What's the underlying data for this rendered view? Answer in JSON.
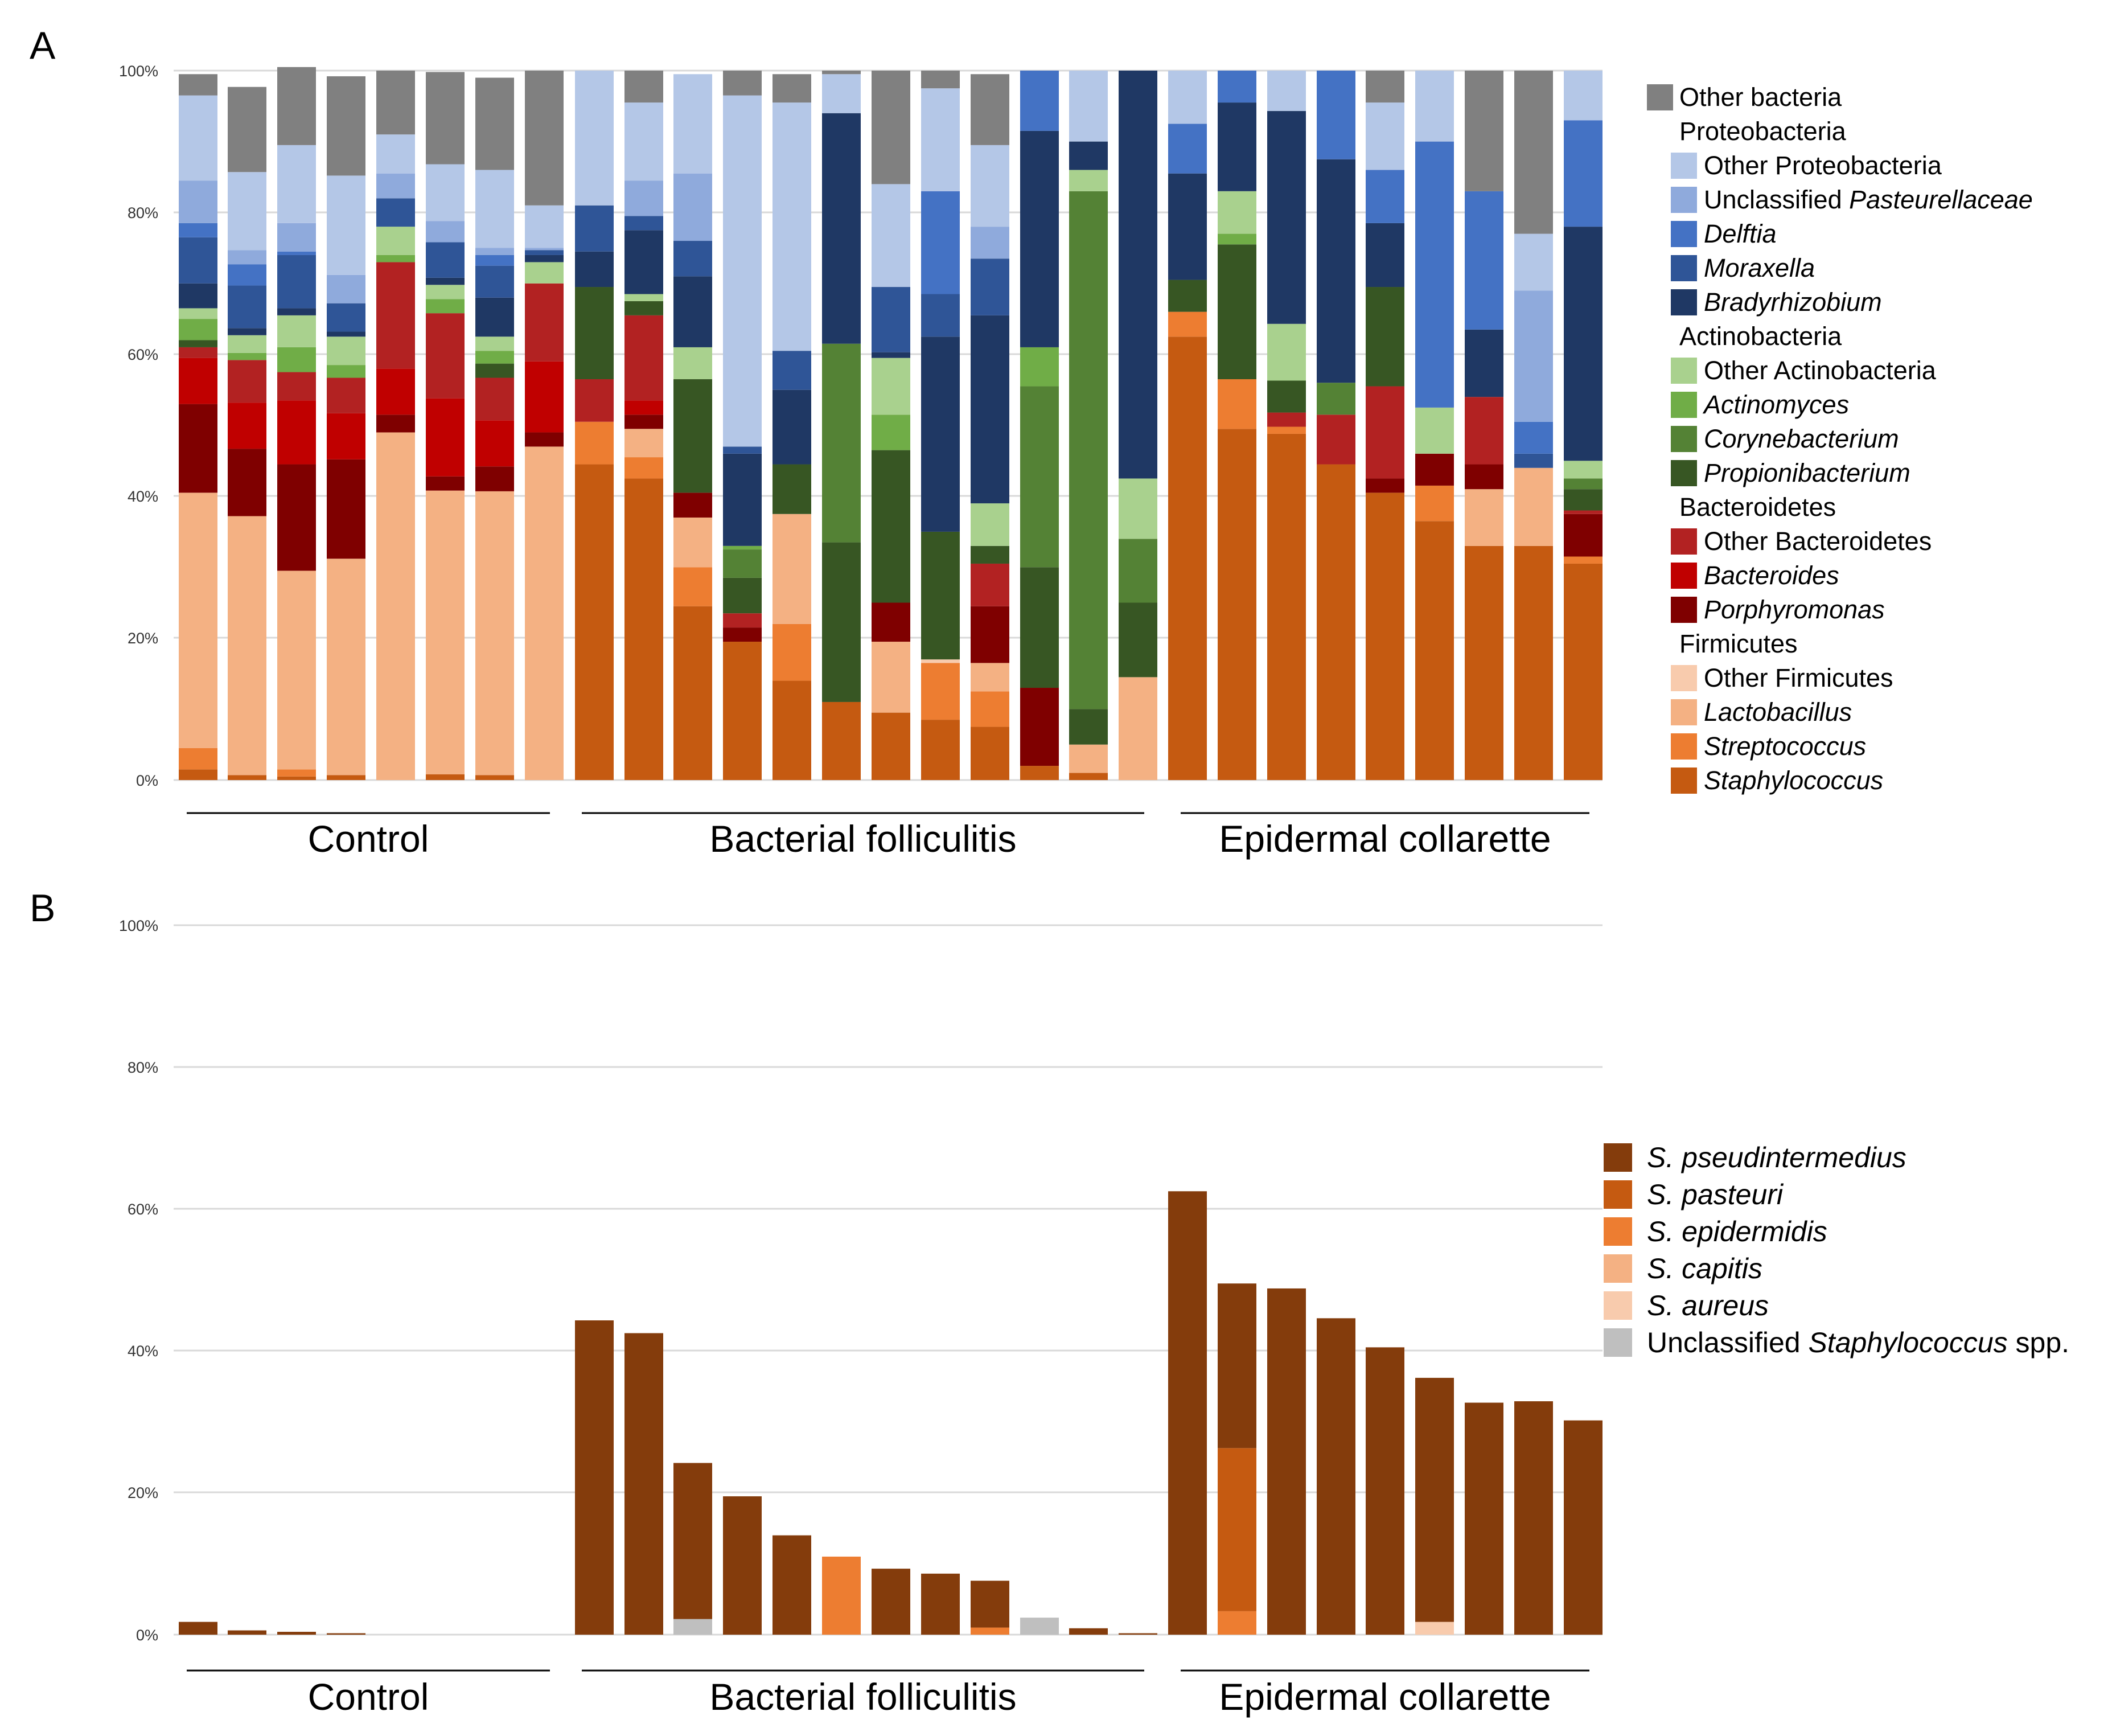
{
  "panel_a": {
    "letter": "A",
    "chart_data": {
      "type": "bar",
      "stacked": true,
      "title": "",
      "ylabel": "",
      "ylim": [
        0,
        100
      ],
      "y_ticks": [
        "0%",
        "20%",
        "40%",
        "60%",
        "80%",
        "100%"
      ],
      "groups": [
        {
          "label": "Control",
          "count": 8
        },
        {
          "label": "Bacterial folliculitis",
          "count": 12
        },
        {
          "label": "Epidermal collarette",
          "count": 9
        }
      ],
      "segments": [
        "Staphylococcus",
        "Streptococcus",
        "Lactobacillus",
        "Other Firmicutes",
        "Porphyromonas",
        "Bacteroides",
        "Other Bacteroidetes",
        "Propionibacterium",
        "Corynebacterium",
        "Actinomyces",
        "Other Actinobacteria",
        "Bradyrhizobium",
        "Moraxella",
        "Delftia",
        "Unclassified Pasteurellaceae",
        "Other Proteobacteria",
        "Other bacteria"
      ],
      "bars": [
        [
          1.5,
          3,
          36,
          0,
          12.5,
          6.5,
          1.5,
          1,
          0,
          3,
          1.5,
          3.5,
          6.5,
          2,
          6,
          12,
          3
        ],
        [
          0.7,
          0,
          36.5,
          0,
          9.5,
          6.5,
          6,
          0,
          0,
          1,
          2.5,
          1,
          6,
          3,
          2,
          11,
          12
        ],
        [
          0.5,
          1,
          28,
          0,
          15,
          9,
          4,
          0,
          0,
          3.5,
          4.5,
          1,
          7.5,
          0.5,
          4,
          11,
          11
        ],
        [
          0.7,
          0,
          30.5,
          0,
          14,
          6.5,
          5,
          0,
          0,
          1.8,
          4,
          0.7,
          4,
          0,
          4,
          14,
          14
        ],
        [
          0,
          0,
          49,
          0,
          2.5,
          6.5,
          15,
          0,
          0,
          1,
          4,
          0,
          4,
          0,
          3.5,
          5.5,
          9
        ],
        [
          0.8,
          0,
          40,
          0,
          2,
          11,
          12,
          0,
          0,
          2,
          2,
          1,
          5,
          0,
          3,
          8,
          13
        ],
        [
          0.7,
          0,
          40,
          0,
          3.5,
          6.5,
          6,
          2,
          0,
          1.8,
          2,
          5.5,
          4.5,
          1.5,
          1,
          11,
          13
        ],
        [
          0,
          0,
          47,
          0,
          2,
          10,
          11,
          0,
          0,
          0,
          3,
          1,
          0.7,
          0,
          0.3,
          6,
          19
        ],
        [
          44.5,
          6,
          0,
          0,
          0,
          0,
          6,
          13,
          0,
          0,
          0,
          5,
          6.5,
          0,
          0,
          19,
          0
        ],
        [
          42.5,
          3,
          4,
          0,
          2,
          2,
          12,
          2,
          0,
          0,
          1,
          9,
          2,
          0,
          5,
          11,
          4.5
        ],
        [
          24.5,
          5.5,
          7,
          0,
          3.5,
          0,
          0,
          16,
          0,
          0,
          4.5,
          10,
          5,
          0,
          9.5,
          14,
          0
        ],
        [
          19.5,
          0,
          0,
          0,
          2,
          0,
          2,
          5,
          4,
          0.5,
          0,
          13,
          1,
          0,
          0,
          49.5,
          3.5
        ],
        [
          14,
          8,
          15.5,
          0,
          0,
          0,
          0,
          7,
          0,
          0,
          0,
          10.5,
          5.5,
          0,
          0,
          35,
          4
        ],
        [
          11,
          0,
          0,
          0,
          0,
          0,
          0,
          22.5,
          28,
          0,
          0,
          32.5,
          0,
          0,
          0,
          5.5,
          0.5
        ],
        [
          9.5,
          0,
          10,
          0,
          5.5,
          0,
          0,
          21.5,
          0,
          5,
          8,
          0.8,
          9.2,
          0,
          0,
          14.5,
          16
        ],
        [
          8.5,
          8,
          0,
          0.5,
          0,
          0,
          0,
          18,
          0,
          0,
          0,
          27.5,
          6,
          14.5,
          0,
          14.5,
          2.5
        ],
        [
          7.5,
          5,
          4,
          0,
          8,
          0,
          6,
          2.5,
          0,
          0,
          6,
          26.5,
          8,
          0,
          4.5,
          11.5,
          10
        ],
        [
          2,
          0,
          0,
          0,
          11,
          0,
          0,
          17,
          25.5,
          5.5,
          0,
          30.5,
          0,
          8.5,
          0,
          0,
          0
        ],
        [
          1,
          0,
          4,
          0,
          0,
          0,
          0,
          5,
          73,
          0,
          3,
          4,
          0,
          0,
          0,
          10,
          0
        ],
        [
          0,
          0,
          14.5,
          0,
          0,
          0,
          0,
          10.5,
          9,
          0,
          8.5,
          57.5,
          0,
          0,
          0,
          0,
          0
        ],
        [
          62.5,
          3.5,
          0,
          0,
          0,
          0,
          0,
          4.5,
          0,
          0,
          0,
          15,
          0,
          7,
          0,
          7.5,
          0
        ],
        [
          49.5,
          7,
          0,
          0,
          0,
          0,
          0,
          19,
          0,
          1.5,
          6,
          12.5,
          0,
          4.5,
          0,
          0,
          0
        ],
        [
          48.8,
          1,
          0,
          0,
          0,
          0,
          2,
          4.5,
          0,
          0,
          8,
          30,
          0,
          0,
          0,
          5.7,
          0
        ],
        [
          44.5,
          0,
          0,
          0,
          0,
          0,
          7,
          0,
          4.5,
          0,
          0,
          31.5,
          0,
          12.5,
          0,
          0,
          0
        ],
        [
          40.5,
          0,
          0,
          0,
          2,
          0,
          13,
          14,
          0,
          0,
          0,
          9,
          0,
          7.5,
          0,
          9.5,
          4.5
        ],
        [
          36.5,
          5,
          0,
          0,
          4.5,
          0,
          0,
          0,
          0,
          0,
          6.5,
          0,
          0,
          37.5,
          0,
          10,
          0
        ],
        [
          33,
          0,
          8,
          0,
          3.5,
          0,
          9.5,
          0,
          0,
          0,
          0,
          9.5,
          0,
          19.5,
          0,
          0,
          17
        ],
        [
          33,
          0,
          11,
          0,
          0,
          0,
          0,
          0,
          0,
          0,
          0,
          0,
          2,
          4.5,
          18.5,
          8,
          23
        ],
        [
          30.5,
          1,
          0,
          0,
          6,
          0,
          0.5,
          3,
          1.5,
          0,
          2.5,
          33,
          0,
          15,
          0,
          7,
          0
        ]
      ]
    },
    "legend": {
      "other_bacteria": "Other bacteria",
      "proteobacteria": "Proteobacteria",
      "other_proteobacteria": "Other Proteobacteria",
      "unclassified_prefix": "Unclassified ",
      "pasteurellaceae": "Pasteurellaceae",
      "delftia": "Delftia",
      "moraxella": "Moraxella",
      "bradyrhizobium": "Bradyrhizobium",
      "actinobacteria": "Actinobacteria",
      "other_actinobacteria": "Other Actinobacteria",
      "actinomyces": "Actinomyces",
      "corynebacterium": "Corynebacterium",
      "propionibacterium": "Propionibacterium",
      "bacteroidetes": "Bacteroidetes",
      "other_bacteroidetes": "Other Bacteroidetes",
      "bacteroides": "Bacteroides",
      "porphyromonas": "Porphyromonas",
      "firmicutes": "Firmicutes",
      "other_firmicutes": "Other Firmicutes",
      "lactobacillus": "Lactobacillus",
      "streptococcus": "Streptococcus",
      "staphylococcus": "Staphylococcus"
    }
  },
  "panel_b": {
    "letter": "B",
    "chart_data": {
      "type": "bar",
      "stacked": true,
      "title": "",
      "ylabel": "",
      "ylim": [
        0,
        100
      ],
      "y_ticks": [
        "0%",
        "20%",
        "40%",
        "60%",
        "80%",
        "100%"
      ],
      "groups": [
        {
          "label": "Control",
          "count": 8
        },
        {
          "label": "Bacterial folliculitis",
          "count": 12
        },
        {
          "label": "Epidermal collarette",
          "count": 9
        }
      ],
      "segments": [
        "Unclassified Staphylococcus spp.",
        "S. aureus",
        "S. capitis",
        "S. epidermidis",
        "S. pasteuri",
        "S. pseudintermedius"
      ],
      "bars": [
        [
          0,
          0,
          0,
          0,
          0,
          1.8
        ],
        [
          0,
          0,
          0,
          0,
          0,
          0.6
        ],
        [
          0,
          0,
          0,
          0,
          0,
          0.4
        ],
        [
          0,
          0,
          0,
          0,
          0,
          0.2
        ],
        [
          0,
          0,
          0,
          0,
          0,
          0
        ],
        [
          0,
          0,
          0,
          0,
          0,
          0
        ],
        [
          0,
          0,
          0,
          0,
          0,
          0
        ],
        [
          0,
          0,
          0,
          0,
          0,
          0
        ],
        [
          0,
          0,
          0,
          0,
          0,
          44.3
        ],
        [
          0,
          0,
          0,
          0,
          0,
          42.5
        ],
        [
          2.2,
          0,
          0,
          0,
          0,
          22
        ],
        [
          0,
          0,
          0,
          0,
          0,
          19.5
        ],
        [
          0,
          0,
          0,
          0,
          0,
          14
        ],
        [
          0,
          0,
          0,
          11,
          0,
          0
        ],
        [
          0,
          0,
          0,
          0,
          0,
          9.3
        ],
        [
          0,
          0,
          0,
          0,
          0,
          8.6
        ],
        [
          0,
          0,
          0,
          1,
          0,
          6.6
        ],
        [
          2.4,
          0,
          0,
          0,
          0,
          0
        ],
        [
          0,
          0,
          0,
          0,
          0,
          0.9
        ],
        [
          0,
          0,
          0,
          0,
          0,
          0.2
        ],
        [
          0,
          0,
          0,
          0,
          0,
          62.5
        ],
        [
          0,
          0,
          0,
          3.3,
          23,
          23.2
        ],
        [
          0,
          0,
          0,
          0,
          0,
          48.8
        ],
        [
          0,
          0,
          0,
          0,
          0,
          44.6
        ],
        [
          0,
          0,
          0,
          0,
          0,
          40.5
        ],
        [
          0,
          1.8,
          0,
          0,
          0,
          34.4
        ],
        [
          0,
          0,
          0,
          0,
          0,
          32.7
        ],
        [
          0,
          0,
          0,
          0,
          0,
          32.9
        ],
        [
          0,
          0,
          0,
          0,
          0,
          30.2
        ]
      ]
    },
    "legend": {
      "pseudintermedius": "S. pseudintermedius",
      "pasteuri": "S. pasteuri",
      "epidermidis": "S. epidermidis",
      "capitis": "S. capitis",
      "aureus": "S. aureus",
      "unclassified_prefix": "Unclassified ",
      "staphylococcus_genus": "Staphylococcus",
      "spp_suffix": " spp."
    }
  },
  "colors": {
    "Staphylococcus": "#c55a11",
    "Streptococcus": "#ed7d31",
    "Lactobacillus": "#f4b183",
    "Other Firmicutes": "#f8cbad",
    "Porphyromonas": "#7f0000",
    "Bacteroides": "#c00000",
    "Other Bacteroidetes": "#b22222",
    "Propionibacterium": "#375623",
    "Corynebacterium": "#548235",
    "Actinomyces": "#70ad47",
    "Other Actinobacteria": "#a9d18e",
    "Bradyrhizobium": "#1f3864",
    "Moraxella": "#2f5597",
    "Delftia": "#4472c4",
    "Unclassified Pasteurellaceae": "#8faadc",
    "Other Proteobacteria": "#b4c7e7",
    "Other bacteria": "#808080",
    "S. pseudintermedius": "#843c0c",
    "S. pasteuri": "#c55a11",
    "S. epidermidis": "#ed7d31",
    "S. capitis": "#f4b183",
    "S. aureus": "#f8cbad",
    "Unclassified Staphylococcus spp.": "#bfbfbf"
  }
}
